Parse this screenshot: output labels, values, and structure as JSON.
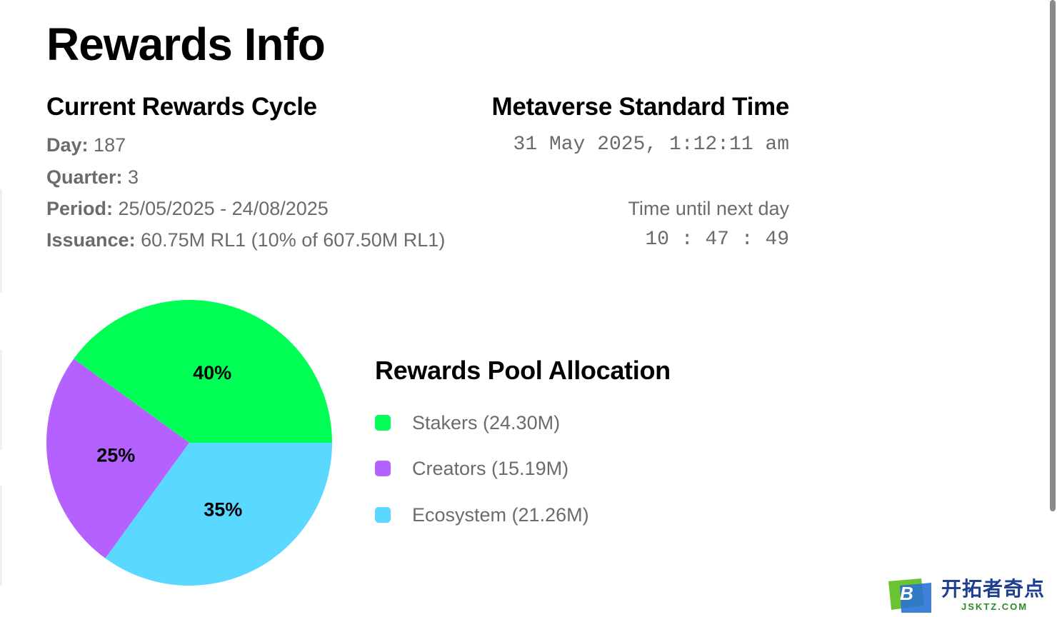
{
  "page": {
    "title": "Rewards Info"
  },
  "cycle": {
    "heading": "Current Rewards Cycle",
    "day_label": "Day:",
    "day_value": "187",
    "quarter_label": "Quarter:",
    "quarter_value": "3",
    "period_label": "Period:",
    "period_value": "25/05/2025 - 24/08/2025",
    "issuance_label": "Issuance:",
    "issuance_value": "60.75M RL1 (10% of 607.50M RL1)"
  },
  "time": {
    "heading": "Metaverse Standard Time",
    "datetime": "31 May 2025, 1:12:11 am",
    "next_day_label": "Time until next day",
    "countdown": "10 : 47 : 49"
  },
  "chart_data": {
    "type": "pie",
    "title": "Rewards Pool Allocation",
    "slices": [
      {
        "label": "Stakers (24.30M)",
        "value": 40,
        "data_label": "40%",
        "color": "#00ff55"
      },
      {
        "label": "Ecosystem (21.26M)",
        "value": 35,
        "data_label": "35%",
        "color": "#5ad8ff"
      },
      {
        "label": "Creators (15.19M)",
        "value": 25,
        "data_label": "25%",
        "color": "#b561ff"
      }
    ]
  },
  "legend": {
    "title": "Rewards Pool Allocation",
    "items": [
      {
        "label": "Stakers (24.30M)",
        "color": "#00ff55"
      },
      {
        "label": "Creators (15.19M)",
        "color": "#b561ff"
      },
      {
        "label": "Ecosystem (21.26M)",
        "color": "#5ad8ff"
      }
    ]
  },
  "watermark": {
    "logo_letter": "B",
    "text": "开拓者奇点",
    "subtext": "JSKTZ.COM"
  }
}
